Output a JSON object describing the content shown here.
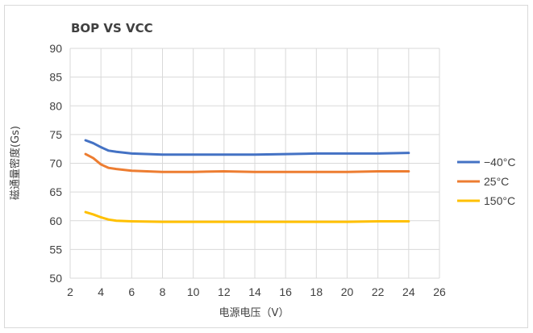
{
  "chart_data": {
    "type": "line",
    "title": "BOP VS VCC",
    "xlabel": "电源电压（V）",
    "ylabel": "磁通量密度(Gs)",
    "xlim": [
      2,
      26
    ],
    "ylim": [
      50,
      90
    ],
    "x_ticks": [
      2,
      4,
      6,
      8,
      10,
      12,
      14,
      16,
      18,
      20,
      22,
      24,
      26
    ],
    "y_ticks": [
      50,
      55,
      60,
      65,
      70,
      75,
      80,
      85,
      90
    ],
    "grid": true,
    "legend_position": "right",
    "x": [
      3,
      3.5,
      4,
      4.5,
      5,
      6,
      8,
      10,
      12,
      14,
      16,
      18,
      20,
      22,
      24
    ],
    "series": [
      {
        "name": "−40°C",
        "color": "#4472c4",
        "values": [
          74.0,
          73.5,
          72.8,
          72.2,
          72.0,
          71.7,
          71.5,
          71.5,
          71.5,
          71.5,
          71.6,
          71.7,
          71.7,
          71.7,
          71.8
        ]
      },
      {
        "name": "25°C",
        "color": "#ed7d31",
        "values": [
          71.6,
          70.9,
          69.8,
          69.2,
          69.0,
          68.7,
          68.5,
          68.5,
          68.6,
          68.5,
          68.5,
          68.5,
          68.5,
          68.6,
          68.6
        ]
      },
      {
        "name": "150°C",
        "color": "#ffc000",
        "values": [
          61.5,
          61.1,
          60.6,
          60.2,
          60.0,
          59.9,
          59.8,
          59.8,
          59.8,
          59.8,
          59.8,
          59.8,
          59.8,
          59.9,
          59.9
        ]
      }
    ],
    "grid_color": "#d9d9d9"
  }
}
